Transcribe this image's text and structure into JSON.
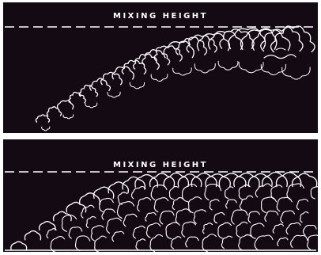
{
  "figure": {
    "top_panel": {
      "label": "MIXING HEIGHT"
    },
    "bottom_panel": {
      "label": "MIXING HEIGHT"
    },
    "colors": {
      "background": "#140a14",
      "line": "#ffffff",
      "page": "#ffffff"
    }
  }
}
